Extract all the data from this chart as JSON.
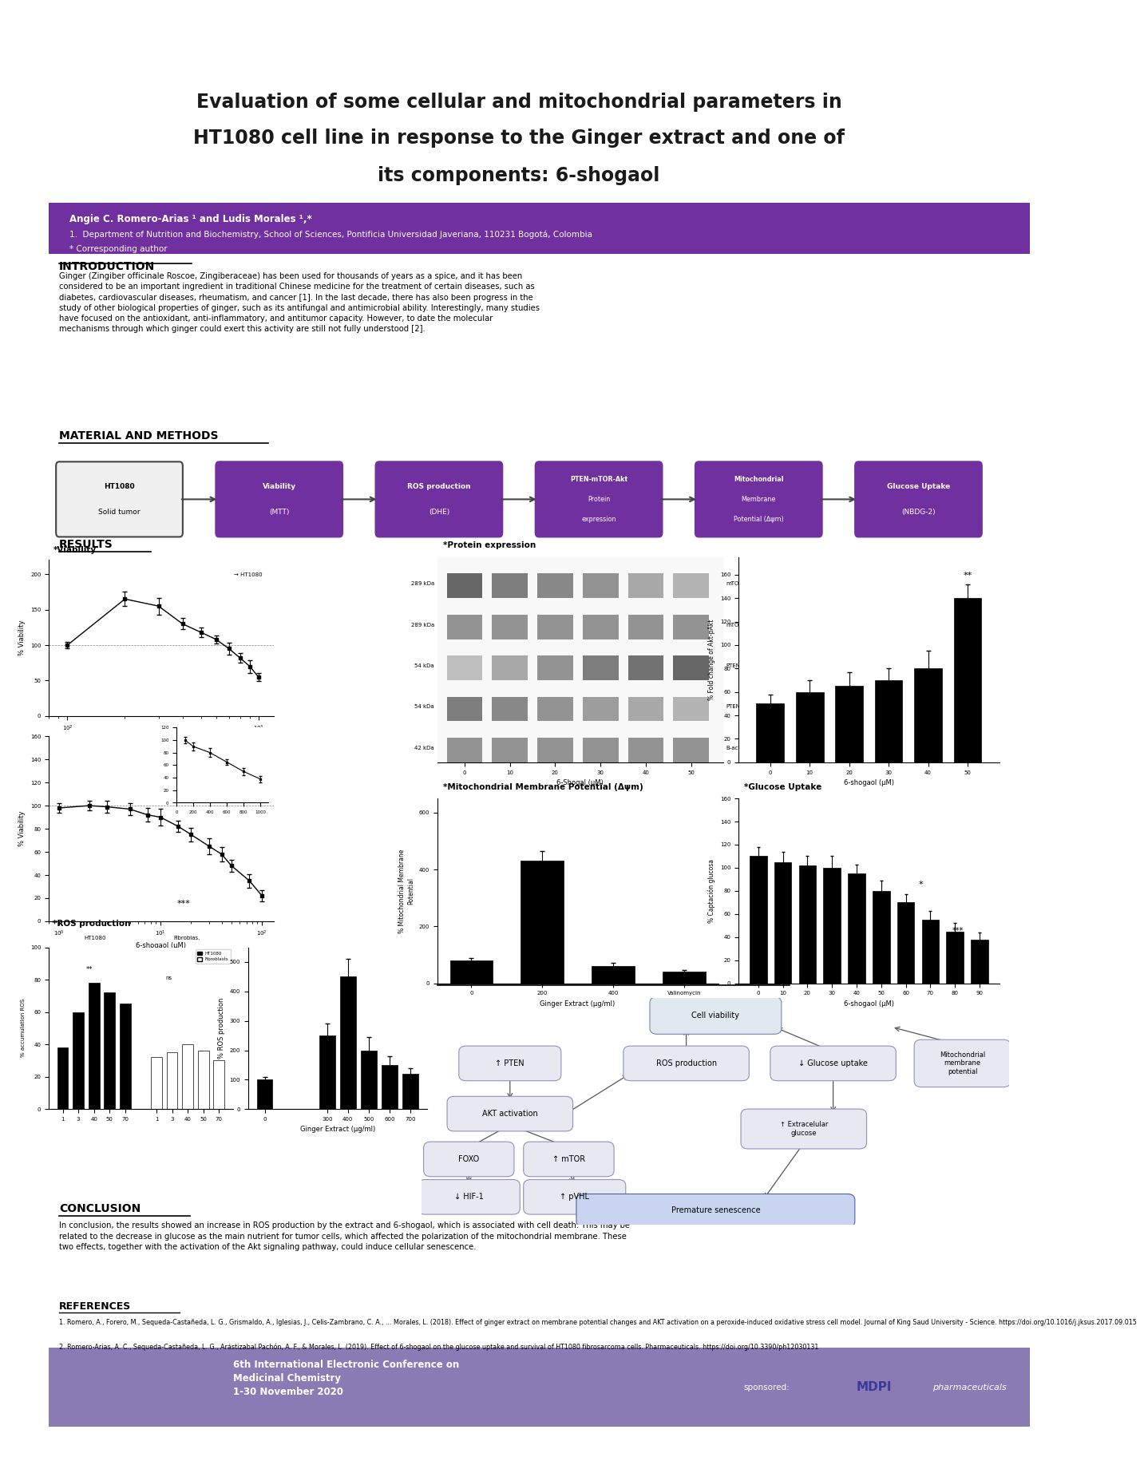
{
  "title_line1": "Evaluation of some cellular and mitochondrial parameters in",
  "title_line2": "HT1080 cell line in response to the Ginger extract and one of",
  "title_line3": "its components: 6-shogaol",
  "authors": "Angie C. Romero-Arias ¹ and Ludis Morales ¹,*",
  "affiliation1": "1.  Department of Nutrition and Biochemistry, School of Sciences, Pontificia Universidad Javeriana, 110231 Bogotá, Colombia",
  "affiliation2": "* Corresponding author",
  "header_bg": "#7030A0",
  "header_text_color": "#ffffff",
  "poster_bg": "#ffffff",
  "intro_title": "INTRODUCTION",
  "intro_text": "Ginger (Zingiber officinale Roscoe, Zingiberaceae) has been used for thousands of years as a spice, and it has been\nconsidered to be an important ingredient in traditional Chinese medicine for the treatment of certain diseases, such as\ndiabetes, cardiovascular diseases, rheumatism, and cancer [1]. In the last decade, there has also been progress in the\nstudy of other biological properties of ginger, such as its antifungal and antimicrobial ability. Interestingly, many studies\nhave focused on the antioxidant, anti-inflammatory, and antitumor capacity. However, to date the molecular\nmechanisms through which ginger could exert this activity are still not fully understood [2].",
  "methods_title": "MATERIAL AND METHODS",
  "results_title": "RESULTS",
  "conclusion_title": "CONCLUSION",
  "conclusion_text": "In conclusion, the results showed an increase in ROS production by the extract and 6-shogaol, which is associated with cell death. This may be\nrelated to the decrease in glucose as the main nutrient for tumor cells, which affected the polarization of the mitochondrial membrane. These\ntwo effects, together with the activation of the Akt signaling pathway, could induce cellular senescence.",
  "references_title": "REFERENCES",
  "ref1": "1. Romero, A., Forero, M., Sequeda-Castañeda, L. G., Grismaldo, A., Iglesias, J., Celis-Zambrano, C. A., ... Morales, L. (2018). Effect of ginger extract on membrane potential changes and AKT activation on a peroxide-induced oxidative stress cell model. Journal of King Saud University - Science. https://doi.org/10.1016/j.jksus.2017.09.015",
  "ref2": "2. Romero-Arias, A. C., Sequeda-Castañeda, L. G., Arástizabal Pachón, A. F., & Morales, L. (2019). Effect of 6-shogaol on the glucose uptake and survival of HT1080 fibrosarcoma cells. Pharmaceuticals. https://doi.org/10.3390/ph12030131",
  "footer_conference": "6th International Electronic Conference on\nMedicinal Chemistry\n1-30 November 2020",
  "footer_sponsored": "sponsored:",
  "flow_boxes": [
    "HT1080\nSolid tumor",
    "Viability\n(MTT)",
    "ROS production\n(DHE)",
    "PTEN-mTOR-Akt\nProtein\nexpression",
    "Mitochondrial\nMembrane\nPotential (Δψm)",
    "Glucose Uptake\n(NBDG-2)"
  ],
  "flow_colors": [
    "#f0f0f0",
    "#7030A0",
    "#7030A0",
    "#7030A0",
    "#7030A0",
    "#7030A0"
  ],
  "flow_border_colors": [
    "#444444",
    "#7030A0",
    "#7030A0",
    "#7030A0",
    "#7030A0",
    "#7030A0"
  ],
  "flow_text_colors": [
    "#000000",
    "#ffffff",
    "#ffffff",
    "#ffffff",
    "#ffffff",
    "#ffffff"
  ]
}
